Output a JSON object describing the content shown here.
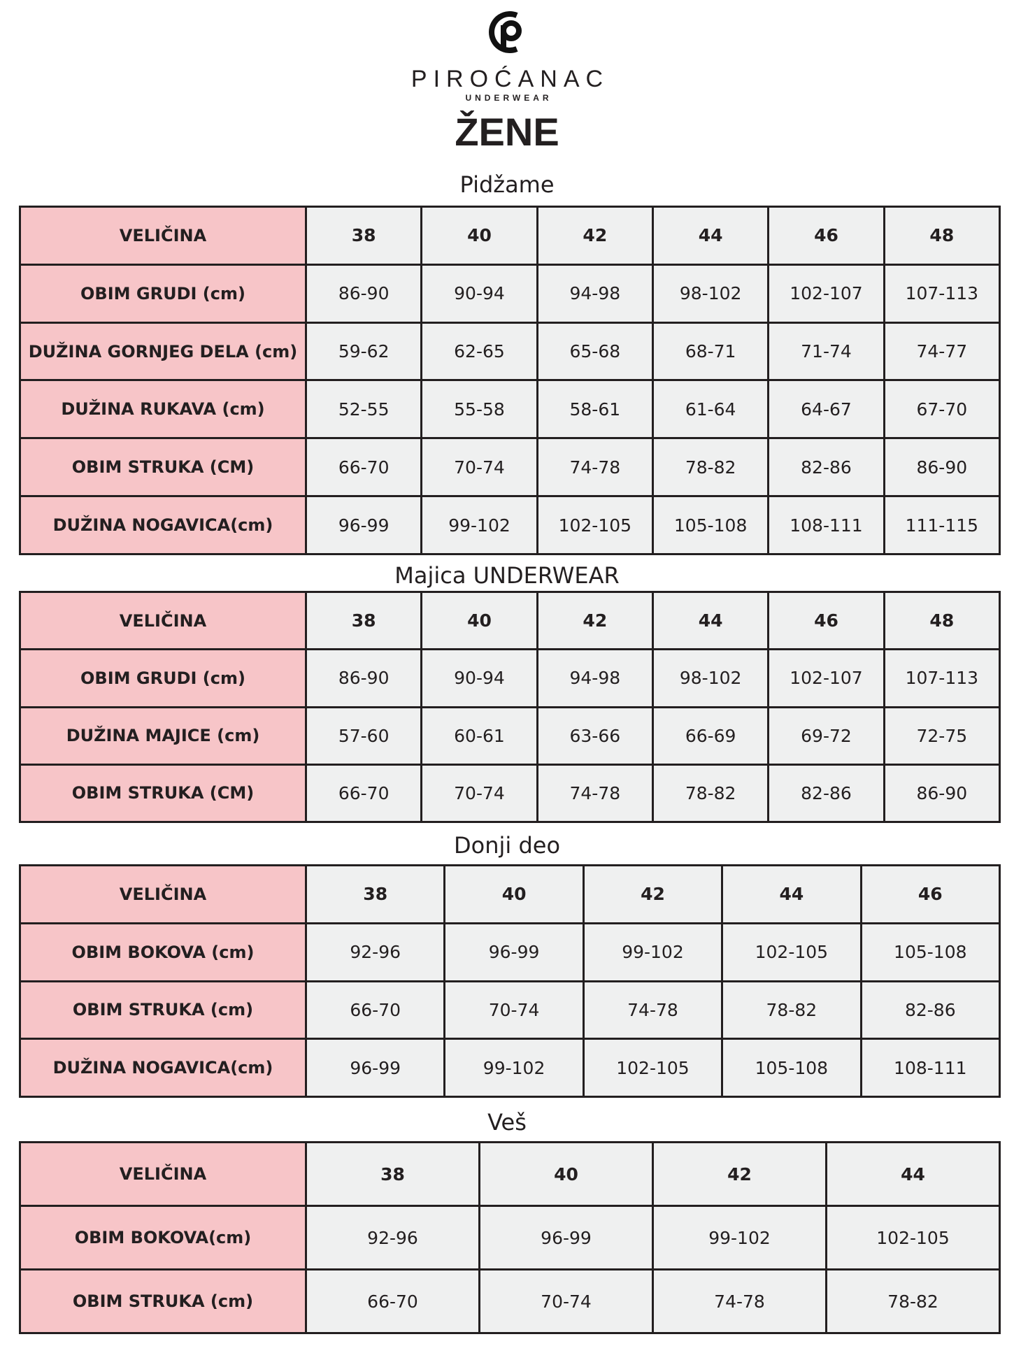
{
  "brand": {
    "name": "PIROĆANAC",
    "tagline": "UNDERWEAR",
    "logo_icon": "pc-monogram-icon"
  },
  "page_title": "ŽENE",
  "colors": {
    "label_bg": "#f7c5c8",
    "cell_bg": "#eff0f0",
    "border": "#231f20"
  },
  "sections": [
    {
      "title": "Pidžame",
      "header_label": "VELIČINA",
      "sizes": [
        "38",
        "40",
        "42",
        "44",
        "46",
        "48"
      ],
      "rows": [
        {
          "label": "OBIM GRUDI (cm)",
          "values": [
            "86-90",
            "90-94",
            "94-98",
            "98-102",
            "102-107",
            "107-113"
          ]
        },
        {
          "label": "DUŽINA GORNJEG DELA (cm)",
          "values": [
            "59-62",
            "62-65",
            "65-68",
            "68-71",
            "71-74",
            "74-77"
          ]
        },
        {
          "label": "DUŽINA RUKAVA (cm)",
          "values": [
            "52-55",
            "55-58",
            "58-61",
            "61-64",
            "64-67",
            "67-70"
          ]
        },
        {
          "label": "OBIM STRUKA (CM)",
          "values": [
            "66-70",
            "70-74",
            "74-78",
            "78-82",
            "82-86",
            "86-90"
          ]
        },
        {
          "label": "DUŽINA NOGAVICA(cm)",
          "values": [
            "96-99",
            "99-102",
            "102-105",
            "105-108",
            "108-111",
            "111-115"
          ]
        }
      ]
    },
    {
      "title": "Majica UNDERWEAR",
      "header_label": "VELIČINA",
      "sizes": [
        "38",
        "40",
        "42",
        "44",
        "46",
        "48"
      ],
      "rows": [
        {
          "label": "OBIM GRUDI (cm)",
          "values": [
            "86-90",
            "90-94",
            "94-98",
            "98-102",
            "102-107",
            "107-113"
          ]
        },
        {
          "label": "DUŽINA MAJICE (cm)",
          "values": [
            "57-60",
            "60-61",
            "63-66",
            "66-69",
            "69-72",
            "72-75"
          ]
        },
        {
          "label": "OBIM STRUKA (CM)",
          "values": [
            "66-70",
            "70-74",
            "74-78",
            "78-82",
            "82-86",
            "86-90"
          ]
        }
      ]
    },
    {
      "title": "Donji deo",
      "header_label": "VELIČINA",
      "sizes": [
        "38",
        "40",
        "42",
        "44",
        "46"
      ],
      "rows": [
        {
          "label": "OBIM BOKOVA (cm)",
          "values": [
            "92-96",
            "96-99",
            "99-102",
            "102-105",
            "105-108"
          ]
        },
        {
          "label": "OBIM STRUKA (cm)",
          "values": [
            "66-70",
            "70-74",
            "74-78",
            "78-82",
            "82-86"
          ]
        },
        {
          "label": "DUŽINA NOGAVICA(cm)",
          "values": [
            "96-99",
            "99-102",
            "102-105",
            "105-108",
            "108-111"
          ]
        }
      ]
    },
    {
      "title": "Veš",
      "header_label": "VELIČINA",
      "sizes": [
        "38",
        "40",
        "42",
        "44"
      ],
      "rows": [
        {
          "label": "OBIM BOKOVA(cm)",
          "values": [
            "92-96",
            "96-99",
            "99-102",
            "102-105"
          ]
        },
        {
          "label": "OBIM STRUKA (cm)",
          "values": [
            "66-70",
            "70-74",
            "74-78",
            "78-82"
          ]
        }
      ]
    }
  ]
}
